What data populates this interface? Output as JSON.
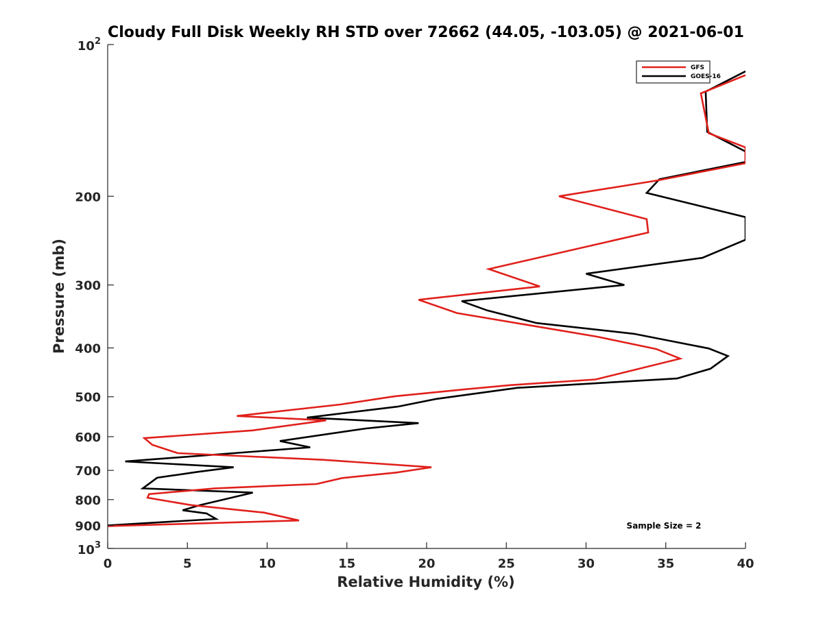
{
  "chart_data": {
    "type": "line",
    "title": "Cloudy Full Disk Weekly RH STD over 72662 (44.05, -103.05) @ 2021-06-01",
    "xlabel": "Relative Humidity (%)",
    "ylabel": "Pressure (mb)",
    "xlim": [
      0,
      40
    ],
    "ylim": [
      100,
      1000
    ],
    "y_scale": "log",
    "y_reversed": true,
    "x_ticks": [
      "0",
      "5",
      "10",
      "15",
      "20",
      "25",
      "30",
      "35",
      "40"
    ],
    "y_ticks": [
      {
        "value": 100,
        "base": "10",
        "exp": "2"
      },
      {
        "value": 200,
        "label": "200"
      },
      {
        "value": 300,
        "label": "300"
      },
      {
        "value": 400,
        "label": "400"
      },
      {
        "value": 500,
        "label": "500"
      },
      {
        "value": 600,
        "label": "600"
      },
      {
        "value": 700,
        "label": "700"
      },
      {
        "value": 800,
        "label": "800"
      },
      {
        "value": 900,
        "label": "900"
      },
      {
        "value": 1000,
        "base": "10",
        "exp": "3"
      }
    ],
    "legend_position": "top-right",
    "grid": false,
    "annotation": "Sample Size = 2",
    "series": [
      {
        "name": "GFS",
        "color": "#e0201b",
        "points": [
          [
            40,
            115
          ],
          [
            37.2,
            125
          ],
          [
            37.7,
            150
          ],
          [
            40,
            160
          ],
          [
            40,
            172
          ],
          [
            34.5,
            186
          ],
          [
            28.3,
            200
          ],
          [
            33.8,
            222
          ],
          [
            33.9,
            236
          ],
          [
            23.9,
            279
          ],
          [
            27.1,
            302
          ],
          [
            19.5,
            321
          ],
          [
            21.9,
            341
          ],
          [
            30.7,
            380
          ],
          [
            34.4,
            402
          ],
          [
            35.9,
            420
          ],
          [
            30.6,
            462
          ],
          [
            25.3,
            474
          ],
          [
            22.5,
            483
          ],
          [
            18.0,
            499
          ],
          [
            14.6,
            518
          ],
          [
            8.1,
            546
          ],
          [
            13.7,
            557
          ],
          [
            9.1,
            583
          ],
          [
            2.3,
            604
          ],
          [
            2.8,
            623
          ],
          [
            4.4,
            647
          ],
          [
            13.5,
            667
          ],
          [
            20.3,
            690
          ],
          [
            18.1,
            707
          ],
          [
            14.7,
            725
          ],
          [
            13.1,
            745
          ],
          [
            6.7,
            760
          ],
          [
            2.6,
            780
          ],
          [
            2.5,
            793
          ],
          [
            5.2,
            820
          ],
          [
            9.8,
            849
          ],
          [
            12.0,
            880
          ],
          [
            0,
            903
          ]
        ]
      },
      {
        "name": "GOES-16",
        "color": "#000000",
        "points": [
          [
            40,
            113
          ],
          [
            37.5,
            124
          ],
          [
            37.6,
            149
          ],
          [
            40,
            163
          ],
          [
            40,
            171
          ],
          [
            34.6,
            185
          ],
          [
            33.8,
            197
          ],
          [
            40,
            220
          ],
          [
            40,
            244
          ],
          [
            37.3,
            265
          ],
          [
            30.0,
            285
          ],
          [
            32.4,
            300
          ],
          [
            22.2,
            323
          ],
          [
            23.8,
            337
          ],
          [
            26.9,
            357
          ],
          [
            33.0,
            375
          ],
          [
            37.7,
            401
          ],
          [
            38.9,
            415
          ],
          [
            37.8,
            440
          ],
          [
            35.7,
            460
          ],
          [
            25.7,
            480
          ],
          [
            20.6,
            505
          ],
          [
            18.2,
            523
          ],
          [
            12.5,
            550
          ],
          [
            19.5,
            564
          ],
          [
            16.2,
            578
          ],
          [
            10.8,
            612
          ],
          [
            12.7,
            630
          ],
          [
            1.1,
            672
          ],
          [
            7.9,
            690
          ],
          [
            5.6,
            705
          ],
          [
            3.1,
            724
          ],
          [
            2.2,
            760
          ],
          [
            9.1,
            775
          ],
          [
            5.8,
            820
          ],
          [
            4.7,
            840
          ],
          [
            6.2,
            852
          ],
          [
            6.8,
            874
          ],
          [
            0,
            900
          ]
        ]
      }
    ]
  }
}
